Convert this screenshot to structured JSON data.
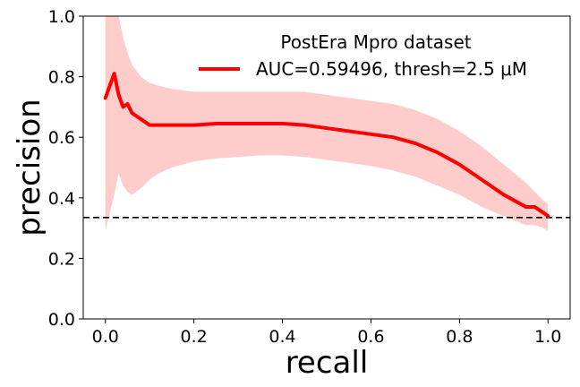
{
  "chart_data": {
    "type": "line",
    "title": "",
    "xlabel": "recall",
    "ylabel": "precision",
    "xlim": [
      -0.05,
      1.05
    ],
    "ylim": [
      0.0,
      1.0
    ],
    "xticks": [
      0.0,
      0.2,
      0.4,
      0.6,
      0.8,
      1.0
    ],
    "xtick_labels": [
      "0.0",
      "0.2",
      "0.4",
      "0.6",
      "0.8",
      "1.0"
    ],
    "yticks": [
      0.0,
      0.2,
      0.4,
      0.6,
      0.8,
      1.0
    ],
    "ytick_labels": [
      "0.0",
      "0.2",
      "0.4",
      "0.6",
      "0.8",
      "1.0"
    ],
    "grid": false,
    "legend": {
      "placement": "top-right",
      "title": "PostEra Mpro dataset",
      "entries": [
        "AUC=0.59496, thresh=2.5 μM"
      ]
    },
    "baseline": {
      "y": 0.335,
      "style": "dashed",
      "color": "#000000"
    },
    "series": [
      {
        "name": "AUC=0.59496, thresh=2.5 μM",
        "color": "#ff0000",
        "band_color": "#ffcccc",
        "x": [
          0.0,
          0.02,
          0.03,
          0.04,
          0.05,
          0.06,
          0.08,
          0.1,
          0.12,
          0.15,
          0.2,
          0.25,
          0.3,
          0.35,
          0.4,
          0.45,
          0.5,
          0.55,
          0.6,
          0.65,
          0.7,
          0.75,
          0.8,
          0.85,
          0.9,
          0.95,
          0.97,
          0.99,
          1.0
        ],
        "y": [
          0.73,
          0.81,
          0.74,
          0.7,
          0.71,
          0.68,
          0.66,
          0.64,
          0.64,
          0.64,
          0.64,
          0.645,
          0.645,
          0.645,
          0.645,
          0.64,
          0.63,
          0.62,
          0.61,
          0.6,
          0.58,
          0.55,
          0.51,
          0.46,
          0.41,
          0.37,
          0.37,
          0.35,
          0.34
        ],
        "upper": [
          1.0,
          1.0,
          1.0,
          0.93,
          0.88,
          0.84,
          0.8,
          0.78,
          0.77,
          0.76,
          0.75,
          0.75,
          0.75,
          0.75,
          0.75,
          0.75,
          0.74,
          0.73,
          0.72,
          0.71,
          0.69,
          0.66,
          0.62,
          0.57,
          0.51,
          0.45,
          0.42,
          0.39,
          0.38
        ],
        "lower": [
          0.29,
          0.41,
          0.48,
          0.44,
          0.42,
          0.41,
          0.43,
          0.46,
          0.48,
          0.5,
          0.52,
          0.53,
          0.535,
          0.54,
          0.54,
          0.535,
          0.525,
          0.515,
          0.505,
          0.49,
          0.47,
          0.44,
          0.41,
          0.37,
          0.34,
          0.31,
          0.31,
          0.3,
          0.29
        ]
      }
    ]
  }
}
